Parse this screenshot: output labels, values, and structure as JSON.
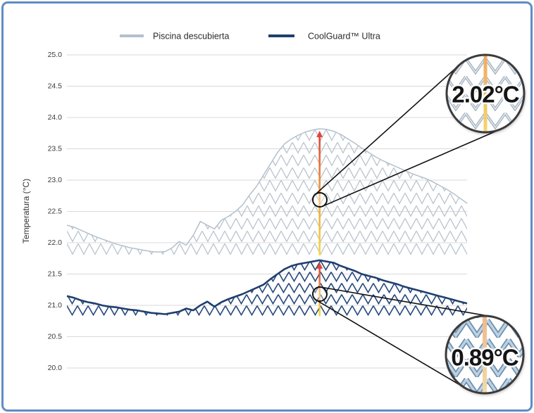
{
  "chart_data": {
    "type": "area",
    "ylabel": "Temperatura (°C)",
    "ylim": [
      20,
      25
    ],
    "yticks": [
      "25.0",
      "24.5",
      "24.0",
      "23.5",
      "23.0",
      "22.5",
      "22.0",
      "21.5",
      "21.0",
      "20.5",
      "20.0"
    ],
    "grid": true,
    "legend": "top-center",
    "series": [
      {
        "name": "Piscina descubierta",
        "color": "#b3c0cd",
        "area_base": 21.8,
        "values": [
          22.28,
          22.25,
          22.2,
          22.15,
          22.1,
          22.06,
          22.02,
          21.98,
          21.95,
          21.92,
          21.9,
          21.88,
          21.86,
          21.85,
          21.86,
          21.92,
          22.02,
          21.96,
          22.12,
          22.34,
          22.28,
          22.22,
          22.36,
          22.42,
          22.5,
          22.6,
          22.76,
          22.9,
          23.08,
          23.26,
          23.44,
          23.58,
          23.66,
          23.72,
          23.77,
          23.8,
          23.82,
          23.81,
          23.78,
          23.73,
          23.66,
          23.59,
          23.51,
          23.44,
          23.37,
          23.31,
          23.26,
          23.21,
          23.16,
          23.11,
          23.07,
          23.03,
          22.98,
          22.92,
          22.86,
          22.79,
          22.71,
          22.63
        ]
      },
      {
        "name": "CoolGuard™ Ultra",
        "color": "#1f3f6e",
        "area_base": 20.83,
        "values": [
          21.15,
          21.12,
          21.08,
          21.05,
          21.03,
          21.0,
          20.98,
          20.97,
          20.95,
          20.93,
          20.92,
          20.9,
          20.88,
          20.87,
          20.86,
          20.88,
          20.9,
          20.95,
          20.92,
          21.0,
          21.06,
          20.98,
          21.05,
          21.1,
          21.14,
          21.18,
          21.23,
          21.28,
          21.33,
          21.42,
          21.5,
          21.58,
          21.63,
          21.66,
          21.68,
          21.7,
          21.72,
          21.7,
          21.68,
          21.63,
          21.59,
          21.55,
          21.5,
          21.47,
          21.44,
          21.4,
          21.37,
          21.34,
          21.3,
          21.27,
          21.24,
          21.21,
          21.18,
          21.15,
          21.12,
          21.09,
          21.06,
          21.03
        ]
      }
    ],
    "annotations": [
      {
        "label": "2.02°C"
      },
      {
        "label": "0.89°C"
      }
    ],
    "colors": {
      "frame": "#5f8cc6",
      "arrow_top": "#e3433b",
      "arrow_bottom": "#f7d93c"
    }
  }
}
